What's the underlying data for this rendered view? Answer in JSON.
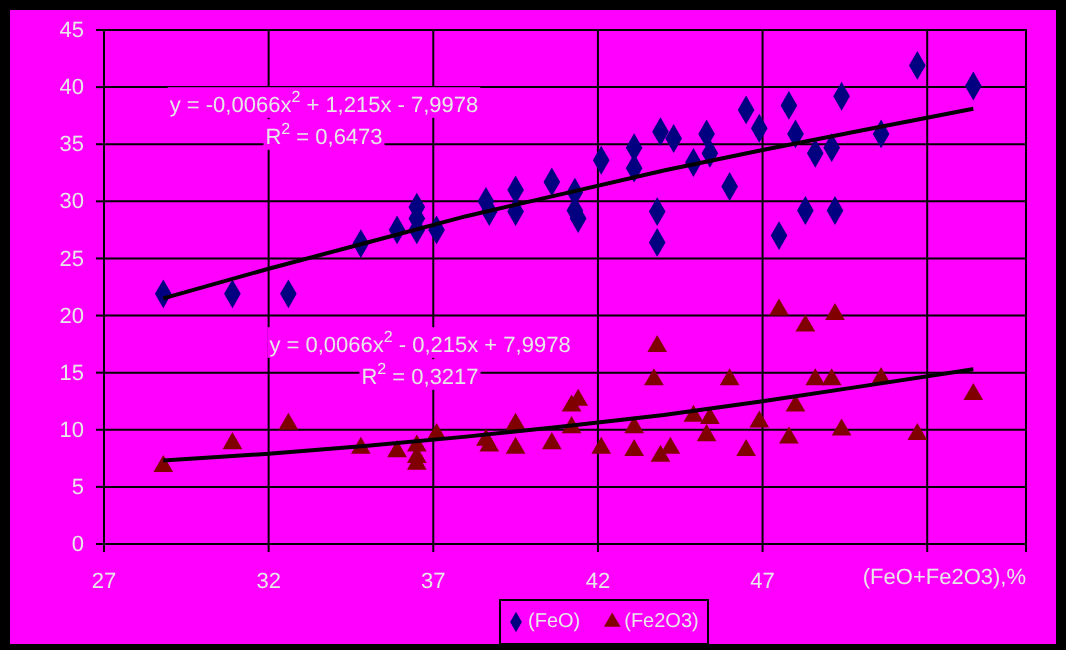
{
  "chart_data": {
    "type": "scatter",
    "xlabel": "(FeO+Fe2O3),%",
    "xlim": [
      27,
      55
    ],
    "xticks": [
      27,
      32,
      37,
      42,
      47,
      {
        "value": 52,
        "label": null
      }
    ],
    "ylim": [
      0,
      45
    ],
    "yticks": [
      0,
      5,
      10,
      15,
      20,
      25,
      30,
      35,
      40,
      45
    ],
    "grid": true,
    "legend": "bottom",
    "series": [
      {
        "name": "(FeO)",
        "color": "#000080",
        "marker": "diamond",
        "x": [
          28.8,
          30.9,
          32.6,
          34.8,
          35.9,
          36.5,
          36.5,
          36.5,
          37.1,
          38.6,
          38.7,
          39.5,
          39.5,
          40.6,
          41.3,
          41.3,
          41.4,
          42.1,
          43.1,
          43.1,
          43.8,
          43.8,
          43.9,
          44.3,
          44.9,
          45.3,
          45.4,
          46.0,
          46.5,
          46.9,
          47.5,
          47.8,
          48.0,
          48.3,
          48.6,
          49.1,
          49.2,
          49.4,
          50.6,
          51.7,
          53.4
        ],
        "values": [
          21.9,
          21.9,
          21.9,
          26.3,
          27.5,
          29.5,
          28.5,
          27.5,
          27.5,
          30.0,
          29.1,
          31.0,
          29.1,
          31.7,
          30.8,
          29.2,
          28.5,
          33.6,
          34.7,
          32.9,
          29.1,
          26.4,
          36.1,
          35.5,
          33.4,
          35.9,
          34.2,
          31.3,
          38.0,
          36.4,
          27.0,
          38.4,
          35.9,
          29.2,
          34.2,
          34.7,
          29.2,
          39.2,
          35.9,
          41.9,
          40.1
        ]
      },
      {
        "name": "(Fe2O3)",
        "color": "#800000",
        "marker": "triangle",
        "x": [
          28.8,
          30.9,
          32.6,
          34.8,
          35.9,
          36.5,
          36.5,
          36.5,
          37.1,
          38.6,
          38.7,
          39.5,
          39.5,
          40.6,
          41.2,
          41.4,
          41.2,
          42.1,
          43.1,
          43.1,
          43.8,
          43.7,
          43.9,
          44.2,
          44.9,
          45.3,
          45.4,
          46.0,
          46.5,
          46.9,
          47.5,
          47.8,
          48.0,
          48.3,
          48.6,
          49.1,
          49.2,
          49.4,
          50.6,
          51.7,
          53.4
        ],
        "values": [
          6.8,
          8.8,
          10.5,
          8.4,
          8.1,
          8.6,
          7.0,
          7.6,
          9.6,
          9.1,
          8.6,
          10.5,
          8.4,
          8.8,
          10.2,
          12.6,
          12.1,
          8.4,
          10.2,
          8.2,
          17.3,
          14.4,
          7.7,
          8.4,
          11.2,
          9.5,
          11.0,
          14.4,
          8.2,
          10.7,
          20.5,
          9.3,
          12.1,
          19.1,
          14.4,
          14.4,
          20.1,
          10.0,
          14.5,
          9.6,
          13.1
        ]
      },
      {
        "type": "line",
        "color": "#000000",
        "x": [
          28.8,
          32,
          35,
          38,
          41,
          44,
          47,
          50,
          53.4
        ],
        "values": [
          21.5,
          24.1,
          26.4,
          28.7,
          30.7,
          32.7,
          34.5,
          36.2,
          38.1
        ]
      },
      {
        "type": "line",
        "color": "#000000",
        "x": [
          28.8,
          32,
          35,
          38,
          41,
          44,
          47,
          50,
          53.4
        ],
        "values": [
          7.3,
          7.9,
          8.6,
          9.4,
          10.3,
          11.3,
          12.5,
          13.8,
          15.3
        ]
      }
    ],
    "annotations": [
      "y = -0,0066x$^{2}$ + 1,215x - 7,9978",
      "R$^{2}$ = 0,6473",
      "y = 0,0066x$^{2}$ - 0,215x + 7,9978",
      "R$^{2}$ = 0,3217"
    ]
  }
}
